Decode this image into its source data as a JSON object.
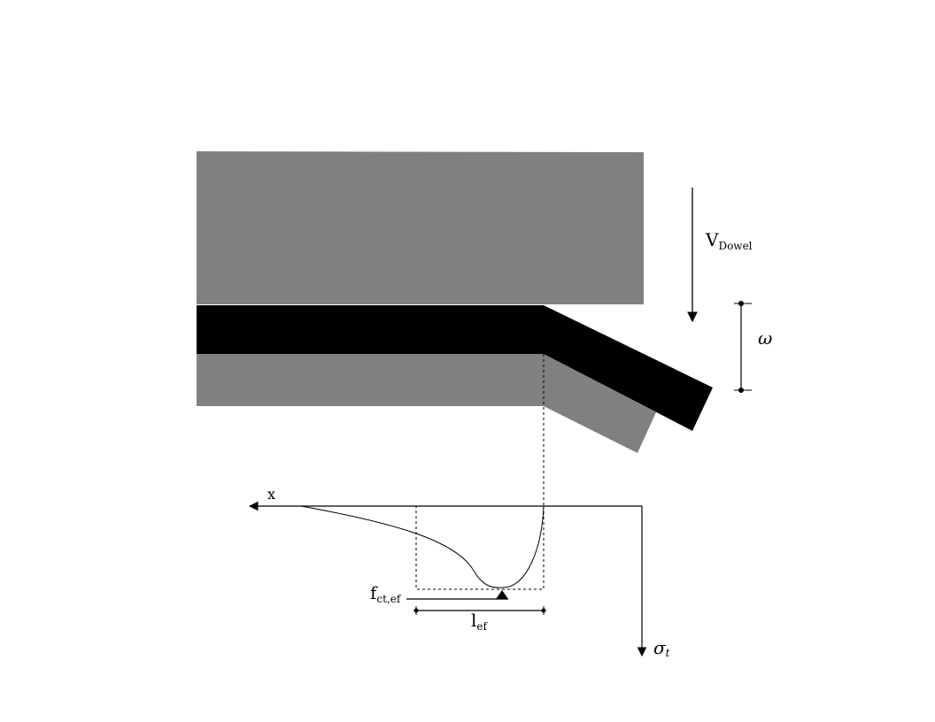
{
  "labels": {
    "dowel_force": {
      "main": "V",
      "sub": "Dowel"
    },
    "crack_opening": "ω",
    "x_axis": "x",
    "stress_axis": {
      "main": "σ",
      "sub": "t"
    },
    "tensile_strength": {
      "main": "f",
      "sub": "ct,ef"
    },
    "effective_length": {
      "main": "l",
      "sub": "ef"
    }
  },
  "colors": {
    "concrete": "#808080",
    "dowel_bar": "#000000",
    "lines": "#000000",
    "background": "#ffffff"
  }
}
